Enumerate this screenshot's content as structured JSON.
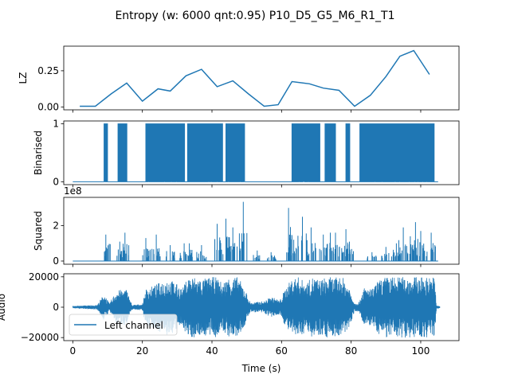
{
  "figure": {
    "title": "Entropy (w: 6000 qnt:0.95) P10_D5_G5_M6_R1_T1",
    "xlabel": "Time (s)",
    "line_color": "#1f77b4"
  },
  "chart_data": [
    {
      "type": "line",
      "ylabel": "LZ",
      "xlim": [
        -2.6,
        111
      ],
      "ylim": [
        -0.02,
        0.42
      ],
      "yticks": [
        "0.00",
        "0.25"
      ],
      "ytick_values": [
        0,
        0.25
      ],
      "series": [
        {
          "x": [
            2,
            6.5,
            11,
            15.5,
            20,
            24.5,
            28,
            32.5,
            37,
            41.5,
            46,
            50.5,
            55,
            59,
            63,
            68,
            72,
            76.5,
            81,
            85.5,
            90,
            94,
            98,
            102.5
          ],
          "values": [
            0.005,
            0.005,
            0.09,
            0.165,
            0.04,
            0.125,
            0.11,
            0.215,
            0.26,
            0.14,
            0.18,
            0.09,
            0.005,
            0.015,
            0.175,
            0.16,
            0.13,
            0.115,
            0.005,
            0.08,
            0.21,
            0.35,
            0.39,
            0.225
          ]
        }
      ]
    },
    {
      "type": "line",
      "ylabel": "Binarised",
      "xlim": [
        -2.6,
        111
      ],
      "ylim": [
        -0.05,
        1.05
      ],
      "yticks": [
        "0",
        "1"
      ],
      "ytick_values": [
        0,
        1
      ],
      "dense_blocks": [
        [
          9,
          10
        ],
        [
          13,
          15.5
        ],
        [
          21,
          32
        ],
        [
          33,
          43
        ],
        [
          44,
          49.5
        ],
        [
          63,
          71
        ],
        [
          72.5,
          75.5
        ],
        [
          78.5,
          79.5
        ],
        [
          82.5,
          104
        ]
      ]
    },
    {
      "type": "line",
      "ylabel": "Squared",
      "scale_label": "1e8",
      "xlim": [
        -2.6,
        111
      ],
      "ylim": [
        -0.18,
        3.6
      ],
      "yticks": [
        "0",
        "2"
      ],
      "ytick_values": [
        0,
        2
      ],
      "peaks": [
        [
          9.5,
          1.5
        ],
        [
          13.5,
          1.1
        ],
        [
          15,
          1.6
        ],
        [
          21,
          1.3
        ],
        [
          24,
          1.5
        ],
        [
          28,
          0.9
        ],
        [
          32,
          1.0
        ],
        [
          33.5,
          1.0
        ],
        [
          37,
          0.9
        ],
        [
          41.5,
          2.1
        ],
        [
          44,
          2.4
        ],
        [
          46,
          1.9
        ],
        [
          49,
          3.35
        ],
        [
          53,
          0.6
        ],
        [
          57,
          0.5
        ],
        [
          62,
          3.0
        ],
        [
          63.5,
          1.2
        ],
        [
          66,
          2.5
        ],
        [
          68.5,
          1.9
        ],
        [
          72,
          1.5
        ],
        [
          74,
          1.6
        ],
        [
          75.5,
          1.6
        ],
        [
          78.5,
          1.8
        ],
        [
          79.5,
          1.1
        ],
        [
          86,
          0.5
        ],
        [
          90,
          0.8
        ],
        [
          93,
          1.0
        ],
        [
          95,
          1.9
        ],
        [
          97,
          1.4
        ],
        [
          98.5,
          2.2
        ],
        [
          100,
          1.7
        ],
        [
          103,
          1.6
        ]
      ],
      "baseline": 0
    },
    {
      "type": "line",
      "ylabel": "Audio",
      "xlim": [
        -2.6,
        111
      ],
      "ylim": [
        -22000,
        22000
      ],
      "yticks": [
        "−20000",
        "0",
        "20000"
      ],
      "ytick_values": [
        -20000,
        0,
        20000
      ],
      "legend": {
        "label": "Left channel",
        "placement": "lower left"
      },
      "envelope": [
        [
          0,
          800
        ],
        [
          7,
          1500
        ],
        [
          9,
          9000
        ],
        [
          10.5,
          2500
        ],
        [
          12.5,
          11000
        ],
        [
          15.5,
          12000
        ],
        [
          17,
          1500
        ],
        [
          20,
          2000
        ],
        [
          21,
          12000
        ],
        [
          24,
          15000
        ],
        [
          27,
          19000
        ],
        [
          29,
          17000
        ],
        [
          31.5,
          12000
        ],
        [
          33,
          20000
        ],
        [
          35,
          20000
        ],
        [
          37,
          18500
        ],
        [
          39,
          19500
        ],
        [
          41,
          20000
        ],
        [
          43,
          16000
        ],
        [
          45,
          20000
        ],
        [
          47.5,
          20000
        ],
        [
          49.5,
          12000
        ],
        [
          51,
          3000
        ],
        [
          55,
          4000
        ],
        [
          57,
          7000
        ],
        [
          59.5,
          4500
        ],
        [
          61,
          12000
        ],
        [
          63,
          19000
        ],
        [
          65,
          20000
        ],
        [
          67,
          16000
        ],
        [
          69,
          20000
        ],
        [
          71,
          18000
        ],
        [
          73,
          20000
        ],
        [
          75,
          19500
        ],
        [
          77.5,
          20000
        ],
        [
          79.5,
          13000
        ],
        [
          81,
          2500
        ],
        [
          82.5,
          4000
        ],
        [
          83.5,
          13000
        ],
        [
          86,
          12000
        ],
        [
          88,
          18000
        ],
        [
          90,
          20000
        ],
        [
          95,
          20000
        ],
        [
          100,
          20000
        ],
        [
          104,
          20000
        ],
        [
          104.5,
          1500
        ],
        [
          105.5,
          500
        ]
      ]
    }
  ]
}
